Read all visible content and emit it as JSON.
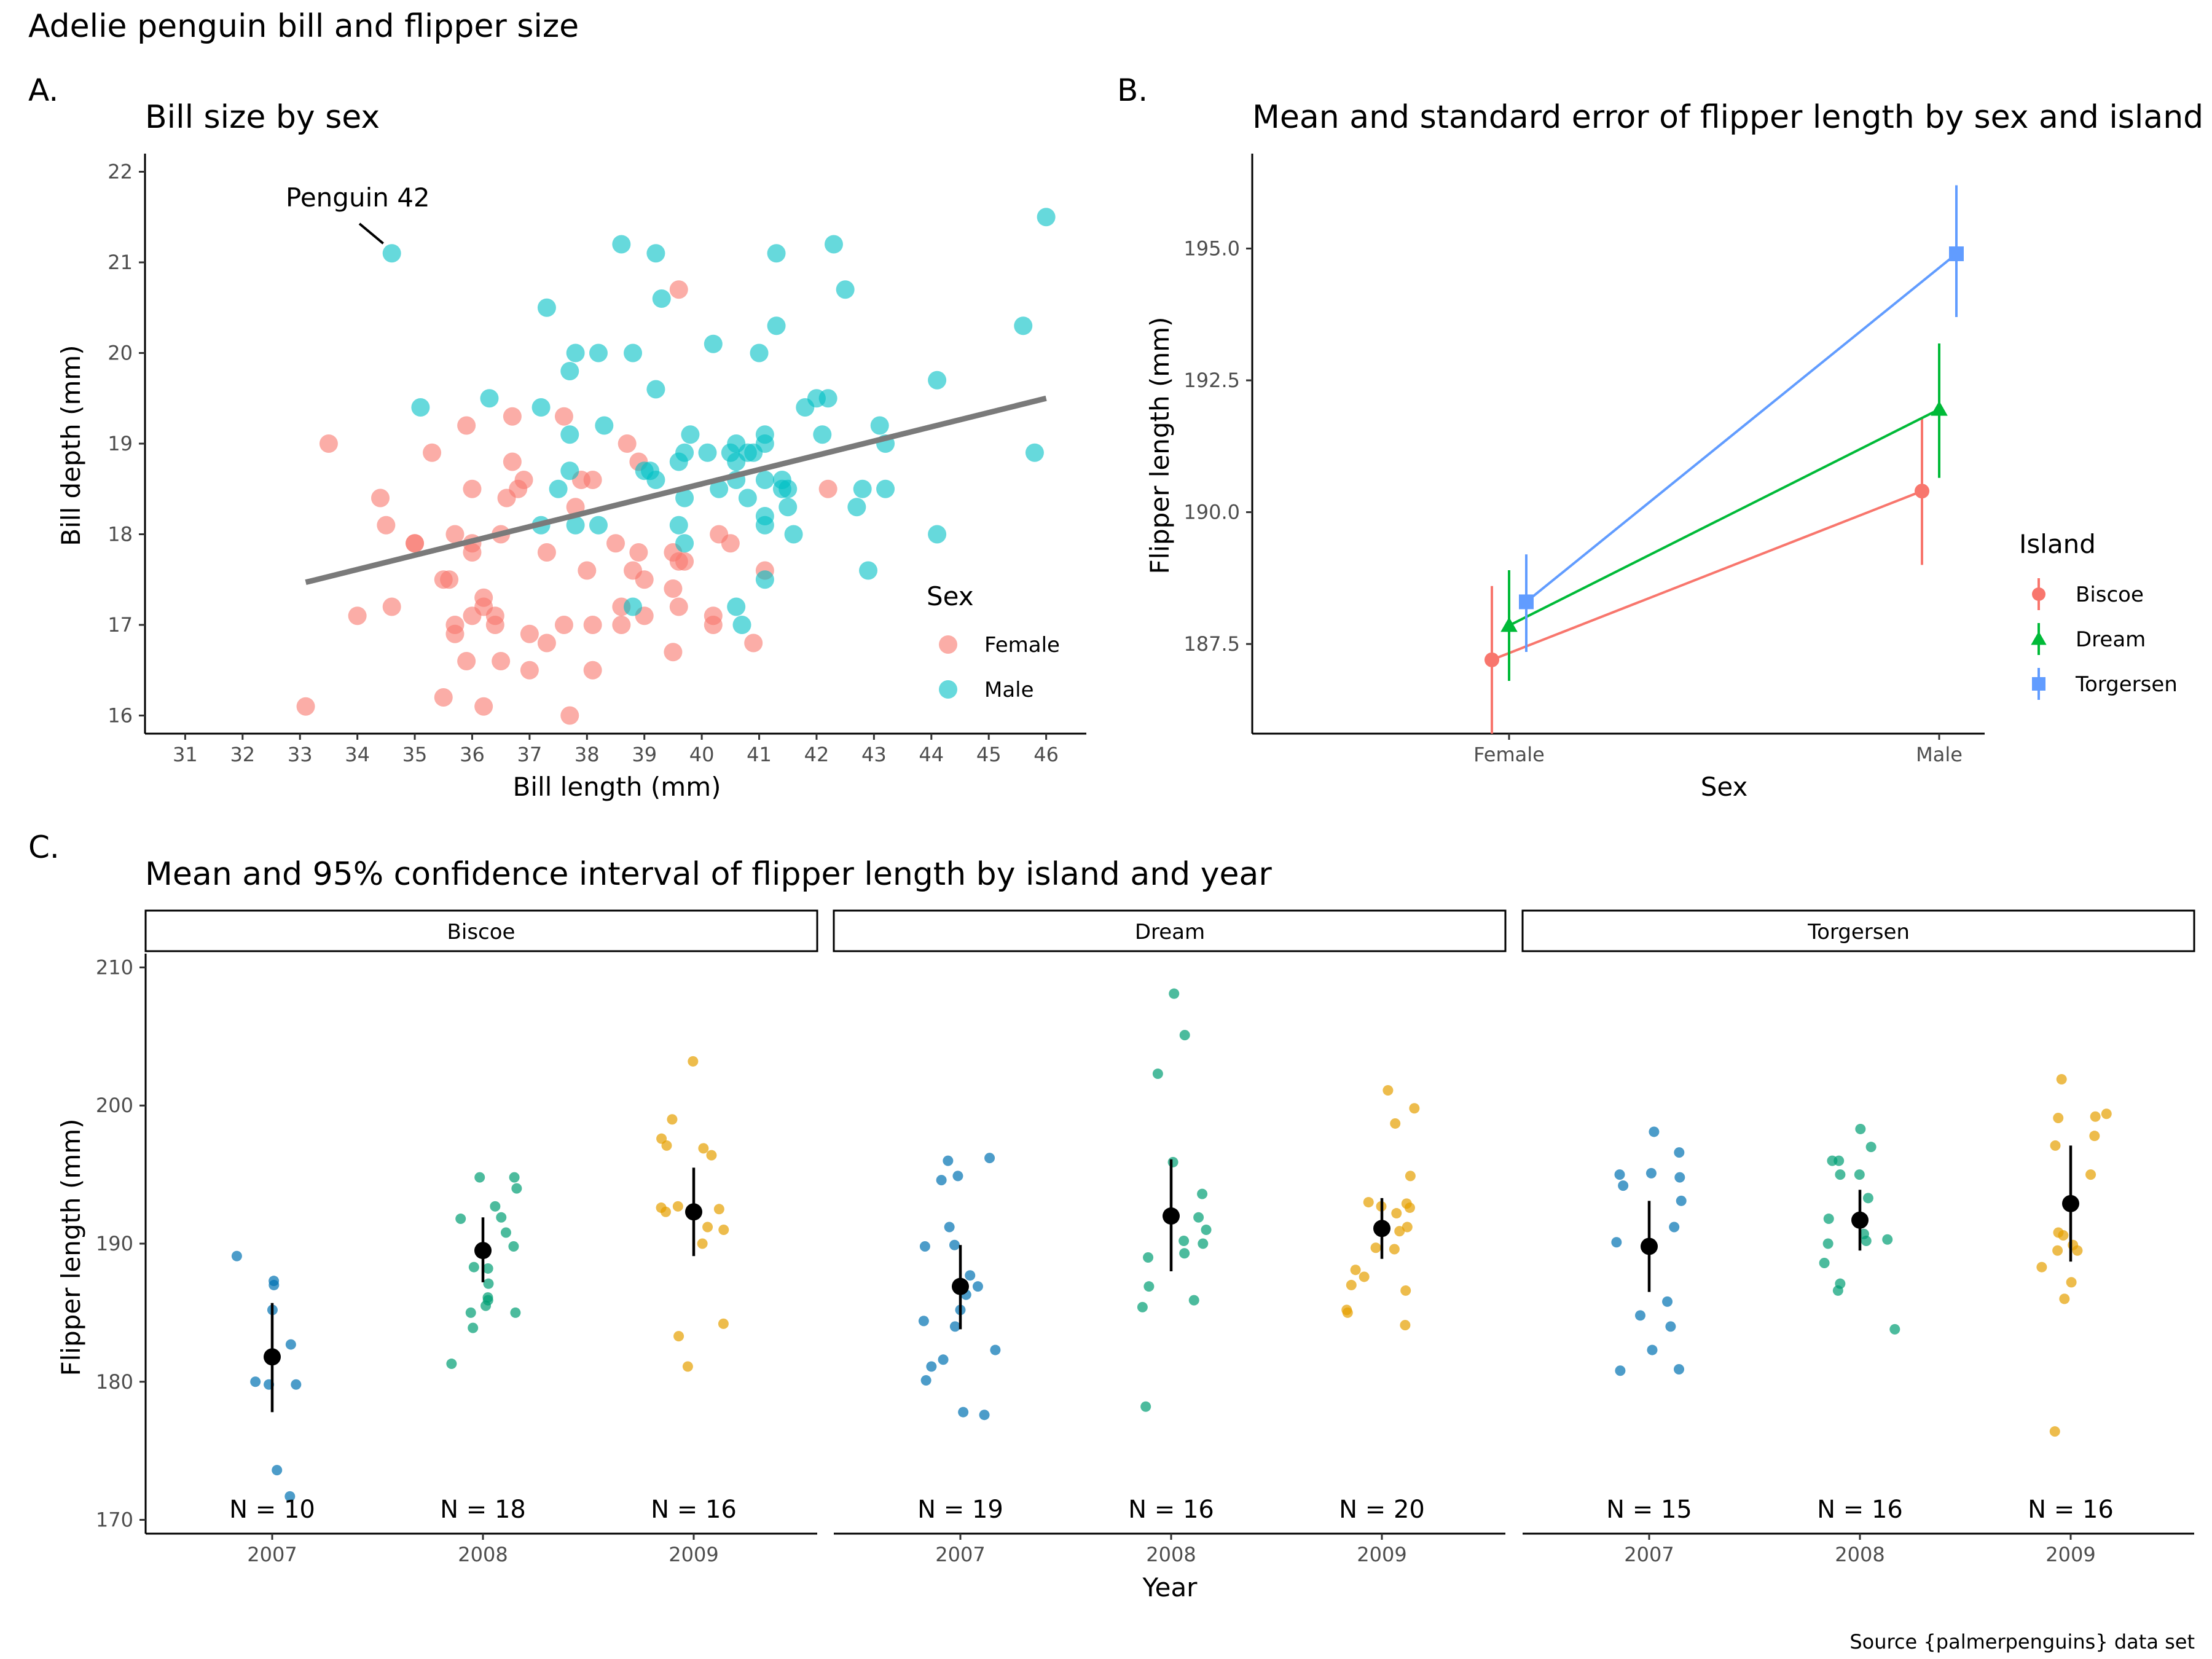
{
  "main_title": "Adelie penguin bill and flipper size",
  "caption": "Source {palmerpenguins} data set",
  "colors": {
    "female": "#F8766D",
    "male": "#00BFC4",
    "biscoe": "#F8766D",
    "dream": "#00BA38",
    "torgersen": "#619CFF",
    "y2007": "#0072B2",
    "y2008": "#009E73",
    "y2009": "#E69F00",
    "trend": "#7a7a7a"
  },
  "chart_data": [
    {
      "panel_tag": "A.",
      "type": "scatter",
      "title": "Bill size by sex",
      "xlabel": "Bill length (mm)",
      "ylabel": "Bill depth (mm)",
      "xlim": [
        30.3,
        46.7
      ],
      "ylim": [
        15.8,
        22.2
      ],
      "x_ticks": [
        31,
        32,
        33,
        34,
        35,
        36,
        37,
        38,
        39,
        40,
        41,
        42,
        43,
        44,
        45,
        46
      ],
      "y_ticks": [
        16,
        17,
        18,
        19,
        20,
        21,
        22
      ],
      "legend_title": "Sex",
      "legend_position": "right",
      "annotation": {
        "text": "Penguin 42",
        "x": 34.6,
        "y": 21.1
      },
      "trend_line": {
        "x": [
          33.1,
          46.0
        ],
        "y": [
          17.47,
          19.5
        ]
      },
      "series": [
        {
          "name": "Female",
          "color": "#F8766D",
          "points": [
            [
              33.1,
              16.1
            ],
            [
              33.5,
              19.0
            ],
            [
              34.0,
              17.1
            ],
            [
              34.4,
              18.4
            ],
            [
              34.5,
              18.1
            ],
            [
              34.6,
              17.2
            ],
            [
              35.0,
              17.9
            ],
            [
              35.0,
              17.9
            ],
            [
              35.3,
              18.9
            ],
            [
              35.5,
              17.5
            ],
            [
              35.5,
              16.2
            ],
            [
              35.6,
              17.5
            ],
            [
              35.7,
              18.0
            ],
            [
              35.7,
              17.0
            ],
            [
              35.7,
              16.9
            ],
            [
              35.9,
              19.2
            ],
            [
              35.9,
              16.6
            ],
            [
              36.0,
              18.5
            ],
            [
              36.0,
              17.9
            ],
            [
              36.0,
              17.8
            ],
            [
              36.0,
              17.1
            ],
            [
              36.2,
              17.3
            ],
            [
              36.2,
              17.2
            ],
            [
              36.2,
              16.1
            ],
            [
              36.4,
              17.1
            ],
            [
              36.4,
              17.0
            ],
            [
              36.5,
              18.0
            ],
            [
              36.5,
              16.6
            ],
            [
              36.6,
              18.4
            ],
            [
              36.7,
              19.3
            ],
            [
              36.7,
              18.8
            ],
            [
              36.8,
              18.5
            ],
            [
              36.9,
              18.6
            ],
            [
              37.0,
              16.9
            ],
            [
              37.0,
              16.5
            ],
            [
              37.3,
              17.8
            ],
            [
              37.3,
              16.8
            ],
            [
              37.6,
              19.3
            ],
            [
              37.6,
              17.0
            ],
            [
              37.7,
              16.0
            ],
            [
              37.8,
              18.3
            ],
            [
              37.9,
              18.6
            ],
            [
              38.0,
              17.6
            ],
            [
              38.1,
              18.6
            ],
            [
              38.1,
              17.0
            ],
            [
              38.1,
              16.5
            ],
            [
              38.5,
              17.9
            ],
            [
              38.6,
              17.2
            ],
            [
              38.6,
              17.0
            ],
            [
              38.7,
              19.0
            ],
            [
              38.8,
              17.6
            ],
            [
              38.9,
              18.8
            ],
            [
              38.9,
              17.8
            ],
            [
              39.0,
              17.1
            ],
            [
              39.0,
              17.5
            ],
            [
              39.5,
              17.8
            ],
            [
              39.5,
              17.4
            ],
            [
              39.5,
              16.7
            ],
            [
              39.6,
              20.7
            ],
            [
              39.6,
              17.7
            ],
            [
              39.6,
              17.2
            ],
            [
              39.7,
              17.7
            ],
            [
              40.2,
              17.1
            ],
            [
              40.2,
              17.0
            ],
            [
              40.3,
              18.0
            ],
            [
              40.5,
              17.9
            ],
            [
              40.9,
              16.8
            ],
            [
              41.1,
              17.6
            ],
            [
              42.2,
              18.5
            ]
          ]
        },
        {
          "name": "Male",
          "color": "#00BFC4",
          "points": [
            [
              34.6,
              21.1
            ],
            [
              35.1,
              19.4
            ],
            [
              36.3,
              19.5
            ],
            [
              37.2,
              18.1
            ],
            [
              37.2,
              19.4
            ],
            [
              37.3,
              20.5
            ],
            [
              37.5,
              18.5
            ],
            [
              37.7,
              18.7
            ],
            [
              37.7,
              19.8
            ],
            [
              37.8,
              18.1
            ],
            [
              37.8,
              20.0
            ],
            [
              37.7,
              19.1
            ],
            [
              38.2,
              20.0
            ],
            [
              38.2,
              18.1
            ],
            [
              38.3,
              19.2
            ],
            [
              38.6,
              21.2
            ],
            [
              38.8,
              20.0
            ],
            [
              38.8,
              17.2
            ],
            [
              39.0,
              18.7
            ],
            [
              39.1,
              18.7
            ],
            [
              39.2,
              21.1
            ],
            [
              39.2,
              19.6
            ],
            [
              39.2,
              18.6
            ],
            [
              39.3,
              20.6
            ],
            [
              39.6,
              18.8
            ],
            [
              39.6,
              18.1
            ],
            [
              39.7,
              18.4
            ],
            [
              39.7,
              17.9
            ],
            [
              39.7,
              18.9
            ],
            [
              39.8,
              19.1
            ],
            [
              40.1,
              18.9
            ],
            [
              40.2,
              20.1
            ],
            [
              40.3,
              18.5
            ],
            [
              40.6,
              18.6
            ],
            [
              40.6,
              19.0
            ],
            [
              40.6,
              18.8
            ],
            [
              40.6,
              17.2
            ],
            [
              40.7,
              17.0
            ],
            [
              40.8,
              18.9
            ],
            [
              40.8,
              18.4
            ],
            [
              40.9,
              18.9
            ],
            [
              41.0,
              20.0
            ],
            [
              41.1,
              19.1
            ],
            [
              41.1,
              19.0
            ],
            [
              41.1,
              18.6
            ],
            [
              41.1,
              18.2
            ],
            [
              41.1,
              18.1
            ],
            [
              41.1,
              17.5
            ],
            [
              41.3,
              21.1
            ],
            [
              41.3,
              20.3
            ],
            [
              41.4,
              18.6
            ],
            [
              41.4,
              18.5
            ],
            [
              41.5,
              18.5
            ],
            [
              41.5,
              18.3
            ],
            [
              41.6,
              18.0
            ],
            [
              41.8,
              19.4
            ],
            [
              42.0,
              19.5
            ],
            [
              42.1,
              19.1
            ],
            [
              42.2,
              19.5
            ],
            [
              42.3,
              21.2
            ],
            [
              42.5,
              20.7
            ],
            [
              42.7,
              18.3
            ],
            [
              42.8,
              18.5
            ],
            [
              42.9,
              17.6
            ],
            [
              43.1,
              19.2
            ],
            [
              43.2,
              19.0
            ],
            [
              43.2,
              18.5
            ],
            [
              44.1,
              19.7
            ],
            [
              44.1,
              18.0
            ],
            [
              45.6,
              20.3
            ],
            [
              45.8,
              18.9
            ],
            [
              46.0,
              21.5
            ],
            [
              40.5,
              18.9
            ]
          ]
        }
      ]
    },
    {
      "panel_tag": "B.",
      "type": "line",
      "title": "Mean and standard error of flipper length by sex and island",
      "xlabel": "Sex",
      "ylabel": "Flipper length (mm)",
      "categories": [
        "Female",
        "Male"
      ],
      "ylim": [
        185.8,
        196.8
      ],
      "y_ticks": [
        187.5,
        190.0,
        192.5,
        195.0
      ],
      "legend_title": "Island",
      "legend_position": "right",
      "series": [
        {
          "name": "Biscoe",
          "color": "#F8766D",
          "shape": "circle",
          "values": [
            187.2,
            190.4
          ],
          "lower": [
            185.8,
            189.0
          ],
          "upper": [
            188.6,
            191.8
          ]
        },
        {
          "name": "Dream",
          "color": "#00BA38",
          "shape": "triangle",
          "values": [
            187.85,
            191.95
          ],
          "lower": [
            186.8,
            190.65
          ],
          "upper": [
            188.9,
            193.2
          ]
        },
        {
          "name": "Torgersen",
          "color": "#619CFF",
          "shape": "square",
          "values": [
            188.3,
            194.9
          ],
          "lower": [
            187.35,
            193.7
          ],
          "upper": [
            189.2,
            196.2
          ]
        }
      ]
    },
    {
      "panel_tag": "C.",
      "type": "scatter",
      "title": "Mean and 95% confidence interval of flipper length by island and year",
      "xlabel": "Year",
      "ylabel": "Flipper length (mm)",
      "ylim": [
        169,
        211
      ],
      "y_ticks": [
        170,
        180,
        190,
        200,
        210
      ],
      "categories": [
        "2007",
        "2008",
        "2009"
      ],
      "facets": [
        {
          "name": "Biscoe",
          "groups": [
            {
              "year": "2007",
              "n_label": "N = 10",
              "mean": 181.8,
              "lower": 177.8,
              "upper": 185.7,
              "points": [
                171.7,
                173.6,
                179.8,
                180.0,
                179.8,
                182.7,
                185.2,
                187.0,
                187.3,
                189.1
              ]
            },
            {
              "year": "2008",
              "n_label": "N = 18",
              "mean": 189.5,
              "lower": 187.2,
              "upper": 191.9,
              "points": [
                181.3,
                183.9,
                185.0,
                185.0,
                185.5,
                185.9,
                186.1,
                187.1,
                188.2,
                188.3,
                189.8,
                190.8,
                191.8,
                191.9,
                192.7,
                194.0,
                194.8,
                194.8
              ]
            },
            {
              "year": "2009",
              "n_label": "N = 16",
              "mean": 192.3,
              "lower": 189.1,
              "upper": 195.5,
              "points": [
                181.1,
                183.3,
                184.2,
                190.0,
                191.0,
                191.2,
                192.3,
                192.5,
                192.6,
                192.7,
                196.4,
                196.9,
                197.1,
                197.6,
                199.0,
                203.2
              ]
            }
          ]
        },
        {
          "name": "Dream",
          "groups": [
            {
              "year": "2007",
              "n_label": "N = 19",
              "mean": 186.9,
              "lower": 183.8,
              "upper": 189.9,
              "points": [
                177.6,
                177.8,
                180.1,
                181.1,
                181.6,
                182.3,
                184.0,
                184.4,
                185.2,
                186.3,
                186.9,
                187.7,
                189.8,
                189.9,
                191.2,
                194.6,
                194.9,
                196.0,
                196.2
              ]
            },
            {
              "year": "2008",
              "n_label": "N = 16",
              "mean": 192.0,
              "lower": 188.0,
              "upper": 196.1,
              "points": [
                178.2,
                185.4,
                185.9,
                186.9,
                189.0,
                189.3,
                190.0,
                190.2,
                191.0,
                191.9,
                192.0,
                193.6,
                195.9,
                202.3,
                205.1,
                208.1
              ]
            },
            {
              "year": "2009",
              "n_label": "N = 20",
              "mean": 191.1,
              "lower": 188.9,
              "upper": 193.3,
              "points": [
                184.1,
                185.0,
                185.2,
                186.6,
                187.0,
                187.6,
                188.1,
                189.6,
                189.7,
                190.9,
                191.2,
                192.2,
                192.6,
                192.7,
                192.9,
                193.0,
                194.9,
                198.7,
                199.8,
                201.1
              ]
            }
          ]
        },
        {
          "name": "Torgersen",
          "groups": [
            {
              "year": "2007",
              "n_label": "N = 15",
              "mean": 189.8,
              "lower": 186.5,
              "upper": 193.1,
              "points": [
                180.8,
                180.9,
                182.3,
                184.0,
                184.8,
                185.8,
                190.1,
                191.2,
                193.1,
                194.2,
                194.8,
                195.0,
                195.1,
                196.6,
                198.1
              ]
            },
            {
              "year": "2008",
              "n_label": "N = 16",
              "mean": 191.7,
              "lower": 189.5,
              "upper": 193.9,
              "points": [
                183.8,
                186.6,
                187.1,
                188.6,
                190.0,
                190.2,
                190.3,
                190.7,
                191.8,
                193.3,
                195.0,
                195.0,
                196.0,
                196.0,
                197.0,
                198.3
              ]
            },
            {
              "year": "2009",
              "n_label": "N = 16",
              "mean": 192.9,
              "lower": 188.7,
              "upper": 197.1,
              "points": [
                176.4,
                186.0,
                187.2,
                188.3,
                189.5,
                189.5,
                189.9,
                190.6,
                190.8,
                195.0,
                197.1,
                197.8,
                199.2,
                199.4,
                201.9,
                199.1
              ]
            }
          ]
        }
      ]
    }
  ]
}
